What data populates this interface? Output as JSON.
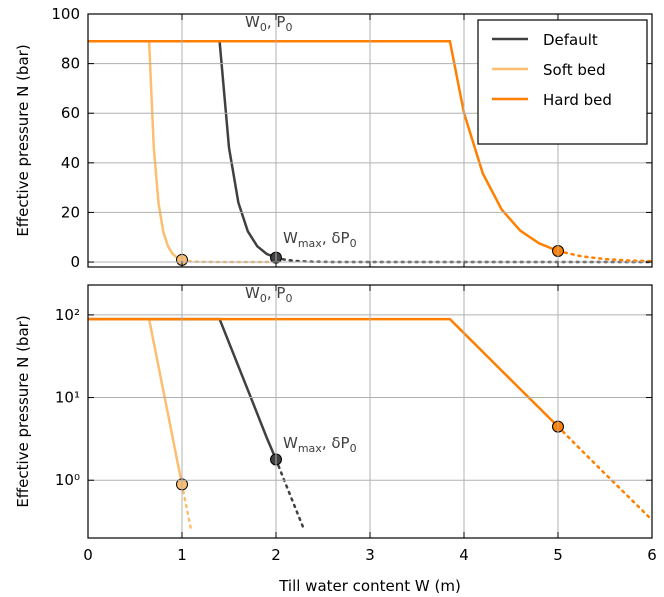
{
  "chart_data": [
    {
      "type": "line",
      "ylabel": "Effective pressure N (bar)",
      "xlim": [
        0,
        6
      ],
      "xticks": [
        0,
        1,
        2,
        3,
        4,
        5,
        6
      ],
      "xticklabels": false,
      "ylim": [
        -2,
        100
      ],
      "yticks": [
        0,
        20,
        40,
        60,
        80,
        100
      ],
      "yscale": "linear",
      "grid": true,
      "legend": "upper right",
      "annotations": [
        {
          "parts": [
            "W",
            "0",
            ", P",
            "0"
          ]
        },
        {
          "parts": [
            "W",
            "max",
            ", δP",
            "0"
          ]
        }
      ],
      "series": [
        {
          "name": "Default",
          "color": "#404040",
          "x": [
            0,
            1.4,
            1.5,
            1.6,
            1.7,
            1.8,
            1.9,
            2.0
          ],
          "values": [
            89,
            89,
            46.1,
            23.9,
            12.4,
            6.4,
            3.3,
            1.78
          ],
          "dotted_x": [
            2.0,
            2.1,
            2.2,
            2.3,
            2.4,
            2.6,
            3,
            4,
            5,
            6
          ],
          "dotted_values": [
            1.78,
            0.92,
            0.48,
            0.25,
            0.13,
            0.036,
            0.0026,
            0.0001,
            0.0001,
            0.0001
          ],
          "marker": [
            2,
            1.78
          ]
        },
        {
          "name": "Soft bed",
          "color": "#fdbf6f",
          "x": [
            0,
            0.65,
            0.7,
            0.75,
            0.8,
            0.85,
            0.9,
            0.95,
            1.0
          ],
          "values": [
            89,
            89,
            46,
            23.8,
            12.3,
            6.4,
            3.3,
            1.7,
            0.89
          ],
          "dotted_x": [
            1.0,
            1.05,
            1.1,
            1.2,
            1.5,
            2
          ],
          "dotted_values": [
            0.89,
            0.46,
            0.24,
            0.064,
            0.0012,
            0.0001
          ],
          "marker": [
            1,
            0.89
          ]
        },
        {
          "name": "Hard bed",
          "color": "#ff7f00",
          "x": [
            0,
            3.85,
            4.0,
            4.2,
            4.4,
            4.6,
            4.8,
            5.0
          ],
          "values": [
            89,
            89,
            60.1,
            35.7,
            21.2,
            12.6,
            7.5,
            4.45
          ],
          "dotted_x": [
            5.0,
            5.25,
            5.5,
            5.75,
            6
          ],
          "dotted_values": [
            4.45,
            2.3,
            1.2,
            0.63,
            0.33
          ],
          "marker": [
            5,
            4.45
          ]
        }
      ]
    },
    {
      "type": "line",
      "ylabel": "Effective pressure N (bar)",
      "xlabel": "Till water content W (m)",
      "xlim": [
        0,
        6
      ],
      "xticks": [
        0,
        1,
        2,
        3,
        4,
        5,
        6
      ],
      "xticklabels": true,
      "ylim": [
        0.2,
        230
      ],
      "yticks": [
        {
          "value": 1,
          "label": "10⁰"
        },
        {
          "value": 10,
          "label": "10¹"
        },
        {
          "value": 100,
          "label": "10²"
        }
      ],
      "yscale": "log",
      "grid": true,
      "annotations": [
        {
          "parts": [
            "W",
            "0",
            ", P",
            "0"
          ]
        },
        {
          "parts": [
            "W",
            "max",
            ", δP",
            "0"
          ]
        }
      ],
      "series": [
        {
          "color": "#404040",
          "x": [
            0,
            1.4,
            1.5,
            1.6,
            1.7,
            1.8,
            1.9,
            2.0
          ],
          "values": [
            89,
            89,
            46.1,
            23.9,
            12.4,
            6.4,
            3.3,
            1.78
          ],
          "dotted_x": [
            2.0,
            2.1,
            2.2,
            2.3
          ],
          "dotted_values": [
            1.78,
            0.92,
            0.48,
            0.25
          ],
          "marker": [
            2,
            1.78
          ]
        },
        {
          "color": "#fdbf6f",
          "x": [
            0,
            0.65,
            0.7,
            0.75,
            0.8,
            0.85,
            0.9,
            0.95,
            1.0
          ],
          "values": [
            89,
            89,
            46,
            23.8,
            12.3,
            6.4,
            3.3,
            1.7,
            0.89
          ],
          "dotted_x": [
            1.0,
            1.05,
            1.1
          ],
          "dotted_values": [
            0.89,
            0.46,
            0.24
          ],
          "marker": [
            1,
            0.89
          ]
        },
        {
          "color": "#ff7f00",
          "x": [
            0,
            3.85,
            4.0,
            4.2,
            4.4,
            4.6,
            4.8,
            5.0
          ],
          "values": [
            89,
            89,
            60.1,
            35.7,
            21.2,
            12.6,
            7.5,
            4.45
          ],
          "dotted_x": [
            5.0,
            5.25,
            5.5,
            5.75,
            6
          ],
          "dotted_values": [
            4.45,
            2.3,
            1.2,
            0.63,
            0.33
          ],
          "marker": [
            5,
            4.45
          ]
        }
      ]
    }
  ]
}
